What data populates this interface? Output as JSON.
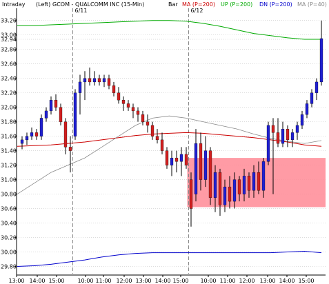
{
  "header": {
    "interval": "Intraday",
    "axis_side": "(Left)",
    "symbol": "GCOM - QUALCOMM INC (15-Min)",
    "bar_label": "Bar",
    "ma_label": "MA (P=200)",
    "up_label": "UP (P=200)",
    "dn_label": "DN (P=200)",
    "ma40_label": "MA (P=40)"
  },
  "colors": {
    "up_candle": "#1f1fd0",
    "down_candle": "#d01f1f",
    "ma200": "#cc0000",
    "upper_band": "#00aa00",
    "lower_band": "#0000cc",
    "ma40": "#888888",
    "zone": "#ff8a95",
    "grid": "#bbbbbb",
    "session_divider": "#888888"
  },
  "chart_data": {
    "type": "candlestick",
    "title": "GCOM - QUALCOMM INC (15-Min)",
    "ylim": [
      29.7,
      33.35
    ],
    "y_ticks": [
      "33.20",
      "33.00",
      "32.94",
      "32.80",
      "32.60",
      "32.40",
      "32.20",
      "32.00",
      "31.80",
      "31.60",
      "31.40",
      "31.20",
      "31.00",
      "30.80",
      "30.60",
      "30.40",
      "30.20",
      "30.00",
      "29.80"
    ],
    "x_ticks": [
      "13:00",
      "14:00",
      "15:00",
      "10:00",
      "11:00",
      "12:00",
      "13:00",
      "14:00",
      "15:00",
      "10:00",
      "11:00",
      "12:00",
      "13:00",
      "14:00",
      "15:00"
    ],
    "session_labels": [
      "6/11",
      "6/12"
    ],
    "grid": true,
    "candles": [
      {
        "o": 31.5,
        "h": 31.6,
        "l": 31.42,
        "c": 31.55
      },
      {
        "o": 31.55,
        "h": 31.65,
        "l": 31.48,
        "c": 31.6
      },
      {
        "o": 31.6,
        "h": 31.72,
        "l": 31.55,
        "c": 31.65
      },
      {
        "o": 31.65,
        "h": 31.7,
        "l": 31.55,
        "c": 31.6
      },
      {
        "o": 31.6,
        "h": 31.9,
        "l": 31.55,
        "c": 31.85
      },
      {
        "o": 31.85,
        "h": 32.0,
        "l": 31.8,
        "c": 31.95
      },
      {
        "o": 31.95,
        "h": 32.15,
        "l": 31.9,
        "c": 32.1
      },
      {
        "o": 32.1,
        "h": 32.18,
        "l": 31.95,
        "c": 32.0
      },
      {
        "o": 32.0,
        "h": 32.05,
        "l": 31.75,
        "c": 31.8
      },
      {
        "o": 31.8,
        "h": 31.85,
        "l": 31.35,
        "c": 31.45
      },
      {
        "o": 31.45,
        "h": 31.6,
        "l": 31.1,
        "c": 31.4
      },
      {
        "o": 31.6,
        "h": 32.25,
        "l": 31.55,
        "c": 32.2
      },
      {
        "o": 32.2,
        "h": 32.45,
        "l": 31.9,
        "c": 32.35
      },
      {
        "o": 32.35,
        "h": 32.5,
        "l": 32.1,
        "c": 32.4
      },
      {
        "o": 32.4,
        "h": 32.55,
        "l": 32.3,
        "c": 32.35
      },
      {
        "o": 32.35,
        "h": 32.5,
        "l": 32.3,
        "c": 32.4
      },
      {
        "o": 32.4,
        "h": 32.45,
        "l": 32.3,
        "c": 32.35
      },
      {
        "o": 32.35,
        "h": 32.45,
        "l": 32.28,
        "c": 32.4
      },
      {
        "o": 32.4,
        "h": 32.45,
        "l": 32.25,
        "c": 32.3
      },
      {
        "o": 32.3,
        "h": 32.35,
        "l": 32.15,
        "c": 32.2
      },
      {
        "o": 32.2,
        "h": 32.28,
        "l": 32.05,
        "c": 32.1
      },
      {
        "o": 32.1,
        "h": 32.15,
        "l": 31.95,
        "c": 32.05
      },
      {
        "o": 32.05,
        "h": 32.1,
        "l": 31.95,
        "c": 32.0
      },
      {
        "o": 32.0,
        "h": 32.05,
        "l": 31.85,
        "c": 31.95
      },
      {
        "o": 31.95,
        "h": 32.0,
        "l": 31.8,
        "c": 31.9
      },
      {
        "o": 31.9,
        "h": 31.95,
        "l": 31.75,
        "c": 31.8
      },
      {
        "o": 31.8,
        "h": 31.9,
        "l": 31.65,
        "c": 31.75
      },
      {
        "o": 31.75,
        "h": 31.8,
        "l": 31.55,
        "c": 31.6
      },
      {
        "o": 31.6,
        "h": 31.7,
        "l": 31.5,
        "c": 31.55
      },
      {
        "o": 31.55,
        "h": 31.65,
        "l": 31.35,
        "c": 31.4
      },
      {
        "o": 31.4,
        "h": 31.45,
        "l": 31.15,
        "c": 31.2
      },
      {
        "o": 31.2,
        "h": 31.4,
        "l": 31.05,
        "c": 31.3
      },
      {
        "o": 31.3,
        "h": 31.4,
        "l": 31.1,
        "c": 31.25
      },
      {
        "o": 31.25,
        "h": 31.45,
        "l": 31.05,
        "c": 31.35
      },
      {
        "o": 31.35,
        "h": 31.45,
        "l": 31.15,
        "c": 31.2
      },
      {
        "o": 31.0,
        "h": 31.1,
        "l": 30.35,
        "c": 30.6
      },
      {
        "o": 30.8,
        "h": 31.7,
        "l": 30.7,
        "c": 31.5
      },
      {
        "o": 31.5,
        "h": 31.65,
        "l": 30.85,
        "c": 31.0
      },
      {
        "o": 31.0,
        "h": 31.6,
        "l": 30.9,
        "c": 31.4
      },
      {
        "o": 31.4,
        "h": 31.45,
        "l": 30.65,
        "c": 30.75
      },
      {
        "o": 30.75,
        "h": 31.2,
        "l": 30.55,
        "c": 31.1
      },
      {
        "o": 31.1,
        "h": 31.15,
        "l": 30.5,
        "c": 30.65
      },
      {
        "o": 30.65,
        "h": 31.0,
        "l": 30.55,
        "c": 30.9
      },
      {
        "o": 30.9,
        "h": 31.05,
        "l": 30.6,
        "c": 30.7
      },
      {
        "o": 30.7,
        "h": 31.1,
        "l": 30.6,
        "c": 31.0
      },
      {
        "o": 31.0,
        "h": 31.05,
        "l": 30.7,
        "c": 30.8
      },
      {
        "o": 30.8,
        "h": 31.15,
        "l": 30.7,
        "c": 31.05
      },
      {
        "o": 31.05,
        "h": 31.1,
        "l": 30.75,
        "c": 30.85
      },
      {
        "o": 30.85,
        "h": 31.2,
        "l": 30.75,
        "c": 31.1
      },
      {
        "o": 31.1,
        "h": 31.25,
        "l": 30.8,
        "c": 30.85
      },
      {
        "o": 30.85,
        "h": 31.3,
        "l": 30.75,
        "c": 31.25
      },
      {
        "o": 31.25,
        "h": 31.8,
        "l": 31.2,
        "c": 31.75
      },
      {
        "o": 31.75,
        "h": 31.85,
        "l": 30.8,
        "c": 31.65
      },
      {
        "o": 31.65,
        "h": 31.85,
        "l": 31.45,
        "c": 31.5
      },
      {
        "o": 31.5,
        "h": 31.8,
        "l": 31.45,
        "c": 31.7
      },
      {
        "o": 31.7,
        "h": 31.75,
        "l": 31.45,
        "c": 31.55
      },
      {
        "o": 31.55,
        "h": 31.7,
        "l": 31.45,
        "c": 31.65
      },
      {
        "o": 31.65,
        "h": 31.8,
        "l": 31.55,
        "c": 31.75
      },
      {
        "o": 31.75,
        "h": 31.95,
        "l": 31.7,
        "c": 31.9
      },
      {
        "o": 31.9,
        "h": 32.1,
        "l": 31.85,
        "c": 32.05
      },
      {
        "o": 32.05,
        "h": 32.25,
        "l": 32.0,
        "c": 32.2
      },
      {
        "o": 32.2,
        "h": 32.4,
        "l": 32.1,
        "c": 32.35
      },
      {
        "o": 32.35,
        "h": 33.2,
        "l": 32.3,
        "c": 32.95
      }
    ],
    "series": [
      {
        "name": "MA (P=200)",
        "values": [
          31.46,
          31.47,
          31.48,
          31.5,
          31.52,
          31.55,
          31.58,
          31.61,
          31.63,
          31.64,
          31.65,
          31.64,
          31.62,
          31.6,
          31.58,
          31.55,
          31.52,
          31.48,
          31.46
        ]
      },
      {
        "name": "UP (P=200)",
        "values": [
          33.13,
          33.13,
          33.14,
          33.15,
          33.16,
          33.17,
          33.18,
          33.19,
          33.2,
          33.2,
          33.19,
          33.16,
          33.12,
          33.07,
          33.02,
          32.99,
          32.96,
          32.94,
          32.94
        ]
      },
      {
        "name": "DN (P=200)",
        "values": [
          29.8,
          29.81,
          29.83,
          29.86,
          29.89,
          29.93,
          29.96,
          29.98,
          29.99,
          29.99,
          29.99,
          29.99,
          29.99,
          29.99,
          29.99,
          29.99,
          30.0,
          30.01,
          29.99
        ]
      },
      {
        "name": "MA (P=40)",
        "values": [
          30.8,
          30.95,
          31.1,
          31.2,
          31.3,
          31.45,
          31.6,
          31.75,
          31.85,
          31.88,
          31.85,
          31.8,
          31.75,
          31.7,
          31.63,
          31.57,
          31.53,
          31.5,
          31.54
        ]
      }
    ],
    "zone": {
      "y_low": 30.62,
      "y_high": 31.3,
      "from_session": "6/12"
    }
  }
}
